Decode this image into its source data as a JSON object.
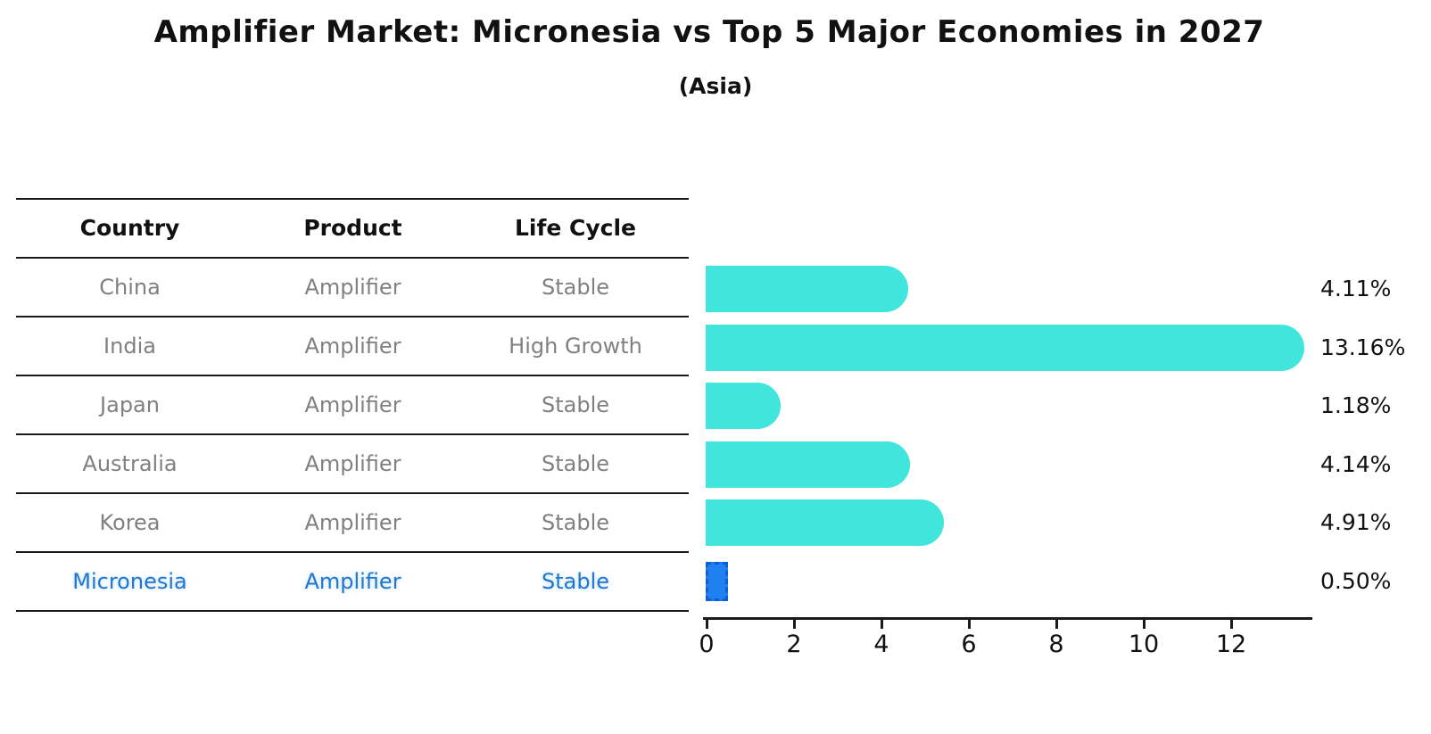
{
  "title": "Amplifier Market: Micronesia vs Top 5 Major Economies in 2027",
  "subtitle": "(Asia)",
  "colors": {
    "bar": "#40E5DC",
    "highlight_bar": "#1F80F0",
    "highlight_bar_border": "#0E5ED8",
    "highlight_text": "#2277CC",
    "table_text": "#808080",
    "text": "#111111",
    "line": "#1A1A1A"
  },
  "table": {
    "headers": [
      "Country",
      "Product",
      "Life Cycle"
    ],
    "rows": [
      {
        "country": "China",
        "product": "Amplifier",
        "life_cycle": "Stable",
        "highlight": false
      },
      {
        "country": "India",
        "product": "Amplifier",
        "life_cycle": "High Growth",
        "highlight": false
      },
      {
        "country": "Japan",
        "product": "Amplifier",
        "life_cycle": "Stable",
        "highlight": false
      },
      {
        "country": "Australia",
        "product": "Amplifier",
        "life_cycle": "Stable",
        "highlight": false
      },
      {
        "country": "Korea",
        "product": "Amplifier",
        "life_cycle": "Stable",
        "highlight": false
      },
      {
        "country": "Micronesia",
        "product": "Amplifier",
        "life_cycle": "Stable",
        "highlight": true
      }
    ]
  },
  "chart_data": {
    "type": "bar",
    "orientation": "horizontal",
    "title": "Amplifier Market: Micronesia vs Top 5 Major Economies in 2027",
    "subtitle": "(Asia)",
    "categories": [
      "China",
      "India",
      "Japan",
      "Australia",
      "Korea",
      "Micronesia"
    ],
    "values": [
      4.11,
      13.16,
      1.18,
      4.14,
      4.91,
      0.5
    ],
    "value_labels": [
      "4.11%",
      "13.16%",
      "1.18%",
      "4.14%",
      "4.91%",
      "0.50%"
    ],
    "xlabel": "",
    "ylabel": "",
    "xlim": [
      0,
      13.86
    ],
    "xticks": [
      0,
      2,
      4,
      6,
      8,
      10,
      12
    ],
    "grid": false,
    "legend": false,
    "highlight_category": "Micronesia",
    "bar_color": "#40E5DC",
    "highlight_color": "#1F80F0"
  }
}
